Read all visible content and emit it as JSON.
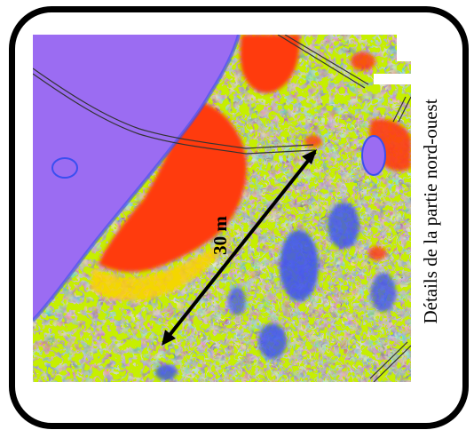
{
  "scale_label": "30 m",
  "side_caption": "Détails de la partie nord-ouest",
  "colors": {
    "water": "#9b6cf2",
    "high": "#ff3b10",
    "mid_high": "#ffd000",
    "mid": "#c6ef00",
    "low": "#22c922",
    "very_low": "#3a4ff0",
    "frame": "#000000",
    "arrow": "#000000"
  }
}
